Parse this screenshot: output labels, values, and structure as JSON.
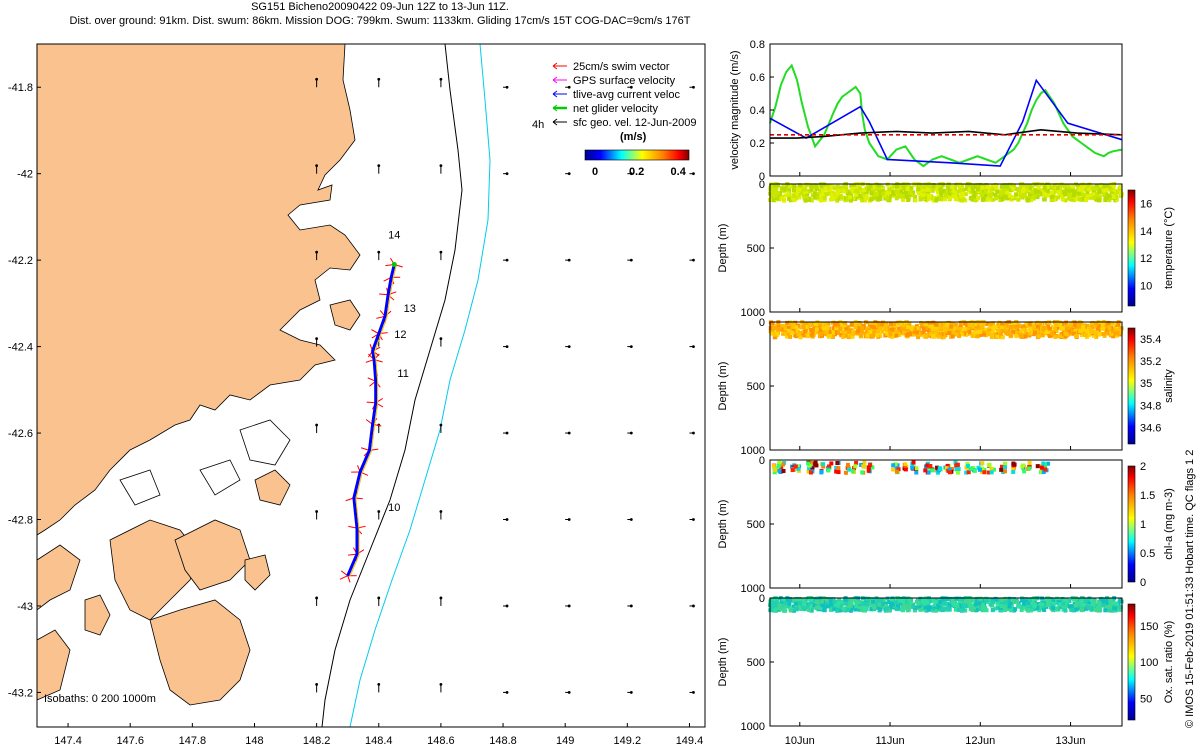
{
  "header": {
    "line1": "SG151 Bicheno20090422 09-Jun 12Z to 13-Jun 11Z.",
    "line2": "Dist. over ground: 91km. Dist. swum: 86km. Mission DOG: 799km. Swum: 1133km. Gliding 17cm/s 15T COG-DAC=9cm/s 176T"
  },
  "map": {
    "legend": [
      {
        "label": "25cm/s swim vector",
        "color": "#ff0000"
      },
      {
        "label": "GPS surface velocity",
        "color": "#ff00ff"
      },
      {
        "label": "tlive-avg current veloc",
        "color": "#0000ff"
      },
      {
        "label": "net glider velocity",
        "color": "#00cc00"
      },
      {
        "label": "sfc geo. vel. 12-Jun-2009",
        "color": "#000000"
      }
    ],
    "colorbar_prefix": "4h",
    "colorbar_unit": "(m/s)",
    "colorbar_ticks": [
      "0",
      "0.2",
      "0.4"
    ],
    "isobaths_label": "Isobaths: 0   200  1000m",
    "x_ticks": [
      "147.4",
      "147.6",
      "147.8",
      "148",
      "148.2",
      "148.4",
      "148.6",
      "148.8",
      "149",
      "149.2",
      "149.4"
    ],
    "y_ticks": [
      "-41.8",
      "-42",
      "-42.2",
      "-42.4",
      "-42.6",
      "-42.8",
      "-43",
      "-43.2"
    ],
    "day_labels": [
      "14",
      "13",
      "12",
      "11",
      "10"
    ],
    "colors": {
      "land": "#f9c28f",
      "sea": "#ffffff",
      "isobath_200": "#000000",
      "isobath_1000": "#00ccee"
    }
  },
  "chart_data": [
    {
      "type": "map",
      "xlim": [
        147.3,
        149.45
      ],
      "ylim": [
        -43.28,
        -41.7
      ],
      "track": [
        [
          148.3,
          -42.93
        ],
        [
          148.33,
          -42.88
        ],
        [
          148.33,
          -42.82
        ],
        [
          148.32,
          -42.75
        ],
        [
          148.34,
          -42.69
        ],
        [
          148.37,
          -42.64
        ],
        [
          148.38,
          -42.58
        ],
        [
          148.39,
          -42.53
        ],
        [
          148.39,
          -42.48
        ],
        [
          148.385,
          -42.43
        ],
        [
          148.38,
          -42.41
        ],
        [
          148.4,
          -42.37
        ],
        [
          148.42,
          -42.33
        ],
        [
          148.43,
          -42.28
        ],
        [
          148.44,
          -42.24
        ],
        [
          148.45,
          -42.21
        ]
      ],
      "day_markers": [
        {
          "label": "14",
          "lon": 148.43,
          "lat": -42.15
        },
        {
          "label": "13",
          "lon": 148.48,
          "lat": -42.32
        },
        {
          "label": "12",
          "lon": 148.45,
          "lat": -42.38
        },
        {
          "label": "11",
          "lon": 148.46,
          "lat": -42.47
        },
        {
          "label": "10",
          "lon": 148.43,
          "lat": -42.78
        }
      ]
    },
    {
      "type": "line",
      "ylabel": "velocity magnitude (m/s)",
      "ylim": [
        0,
        0.8
      ],
      "y_ticks": [
        "0",
        "0.2",
        "0.4",
        "0.6",
        "0.8"
      ],
      "series": [
        {
          "color": "#22dd22",
          "x": [
            0,
            0.06,
            0.12,
            0.18,
            0.24,
            0.3,
            0.35,
            0.42,
            0.5,
            0.6,
            0.7,
            0.75,
            0.8,
            0.85,
            0.9,
            0.95,
            1.0,
            1.02,
            1.05,
            1.1,
            1.2,
            1.3,
            1.4,
            1.5,
            1.6,
            1.7,
            1.8,
            1.9,
            2.0,
            2.1,
            2.2,
            2.3,
            2.4,
            2.5,
            2.6,
            2.7,
            2.75,
            2.8,
            2.85,
            2.9,
            2.95,
            3.0,
            3.05,
            3.1,
            3.15,
            3.2,
            3.25,
            3.3,
            3.35,
            3.4,
            3.45,
            3.5,
            3.55,
            3.6,
            3.65,
            3.7,
            3.75,
            3.8,
            3.9
          ],
          "y": [
            0.32,
            0.42,
            0.55,
            0.63,
            0.67,
            0.58,
            0.45,
            0.3,
            0.18,
            0.25,
            0.38,
            0.44,
            0.48,
            0.5,
            0.52,
            0.54,
            0.5,
            0.38,
            0.28,
            0.2,
            0.12,
            0.1,
            0.16,
            0.18,
            0.1,
            0.06,
            0.1,
            0.12,
            0.1,
            0.08,
            0.1,
            0.12,
            0.1,
            0.08,
            0.12,
            0.16,
            0.2,
            0.26,
            0.32,
            0.4,
            0.46,
            0.5,
            0.52,
            0.48,
            0.44,
            0.38,
            0.32,
            0.28,
            0.24,
            0.22,
            0.2,
            0.18,
            0.16,
            0.14,
            0.13,
            0.12,
            0.14,
            0.15,
            0.16
          ]
        },
        {
          "color": "#0000ff",
          "x": [
            0,
            0.4,
            1.0,
            1.1,
            1.3,
            2.0,
            2.55,
            2.8,
            2.95,
            3.3,
            3.9
          ],
          "y": [
            0.35,
            0.23,
            0.42,
            0.33,
            0.1,
            0.08,
            0.06,
            0.33,
            0.58,
            0.32,
            0.22
          ]
        },
        {
          "color": "#000000",
          "x": [
            0,
            0.3,
            0.6,
            1.0,
            1.4,
            1.8,
            2.2,
            2.6,
            3.0,
            3.4,
            3.9
          ],
          "y": [
            0.23,
            0.23,
            0.24,
            0.26,
            0.27,
            0.26,
            0.27,
            0.25,
            0.28,
            0.26,
            0.25
          ]
        },
        {
          "color": "#dd0000",
          "dashed": true,
          "x": [
            0,
            3.9
          ],
          "y": [
            0.25,
            0.25
          ]
        }
      ]
    },
    {
      "type": "scatter",
      "ylabel": "Depth (m)",
      "cbar_label": "temperature (°C)",
      "ylim": [
        0,
        1000
      ],
      "y_ticks": [
        "0",
        "500",
        "1000"
      ],
      "cbar_ticks": [
        "10",
        "12",
        "14",
        "16"
      ],
      "cbar_range": [
        8.5,
        17
      ],
      "depth_max": 130,
      "pattern": "uniform",
      "colors": [
        "#c8e600",
        "#dff000",
        "#b4dc00"
      ]
    },
    {
      "type": "scatter",
      "ylabel": "Depth (m)",
      "cbar_label": "salinity",
      "ylim": [
        0,
        1000
      ],
      "y_ticks": [
        "0",
        "500",
        "1000"
      ],
      "cbar_ticks": [
        "34.6",
        "34.8",
        "35",
        "35.2",
        "35.4"
      ],
      "cbar_range": [
        34.45,
        35.5
      ],
      "depth_max": 120,
      "pattern": "uniform",
      "colors": [
        "#ffc000",
        "#ffaa00",
        "#ffd400",
        "#ff9000"
      ]
    },
    {
      "type": "scatter",
      "ylabel": "Depth (m)",
      "cbar_label": "chl-a (mg m-3)",
      "ylim": [
        0,
        1000
      ],
      "y_ticks": [
        "0",
        "500",
        "1000"
      ],
      "cbar_ticks": [
        "0",
        "0.5",
        "1",
        "1.5",
        "2"
      ],
      "cbar_range": [
        0,
        2
      ],
      "depth_max": 100,
      "pattern": "clusters",
      "clusters": [
        [
          0.03,
          0.16
        ],
        [
          0.24,
          0.33
        ],
        [
          0.4,
          0.53
        ],
        [
          0.56,
          0.59
        ],
        [
          0.64,
          0.68
        ],
        [
          0.73,
          0.76
        ],
        [
          0.84,
          0.88
        ],
        [
          0.91,
          0.96
        ],
        [
          1.0,
          1.05
        ],
        [
          1.09,
          1.14
        ],
        [
          1.36,
          1.43
        ],
        [
          1.49,
          1.52
        ],
        [
          1.56,
          1.63
        ],
        [
          1.71,
          1.81
        ],
        [
          1.84,
          1.9
        ],
        [
          1.93,
          2.02
        ],
        [
          2.05,
          2.11
        ],
        [
          2.17,
          2.27
        ],
        [
          2.31,
          2.38
        ],
        [
          2.42,
          2.49
        ],
        [
          2.55,
          2.61
        ],
        [
          2.69,
          2.72
        ],
        [
          2.79,
          2.83
        ],
        [
          2.86,
          2.89
        ],
        [
          2.96,
          3.09
        ]
      ],
      "colors": [
        "#ff2000",
        "#ffd000",
        "#00b0ff",
        "#30ff60",
        "#ff8000",
        "#a0ff20",
        "#8b0000",
        "#00e0e0",
        "#ff0000"
      ]
    },
    {
      "type": "scatter",
      "ylabel": "Depth (m)",
      "cbar_label": "Ox. sat. ratio (%)",
      "ylim": [
        0,
        1000
      ],
      "y_ticks": [
        "0",
        "500",
        "1000"
      ],
      "cbar_ticks": [
        "50",
        "100",
        "150"
      ],
      "cbar_range": [
        20,
        180
      ],
      "depth_max": 100,
      "pattern": "uniform",
      "colors": [
        "#20d0b0",
        "#30e0a0",
        "#10c0c0",
        "#40d890"
      ]
    }
  ],
  "timeline": {
    "x_ticks": [
      "10Jun",
      "11Jun",
      "12Jun",
      "13Jun"
    ],
    "x_tick_days": [
      0.33,
      1.33,
      2.33,
      3.33
    ]
  },
  "footer": {
    "credit": "© IMOS 15-Feb-2019 01:51:33 Hobart time. QC flags 1  2"
  }
}
